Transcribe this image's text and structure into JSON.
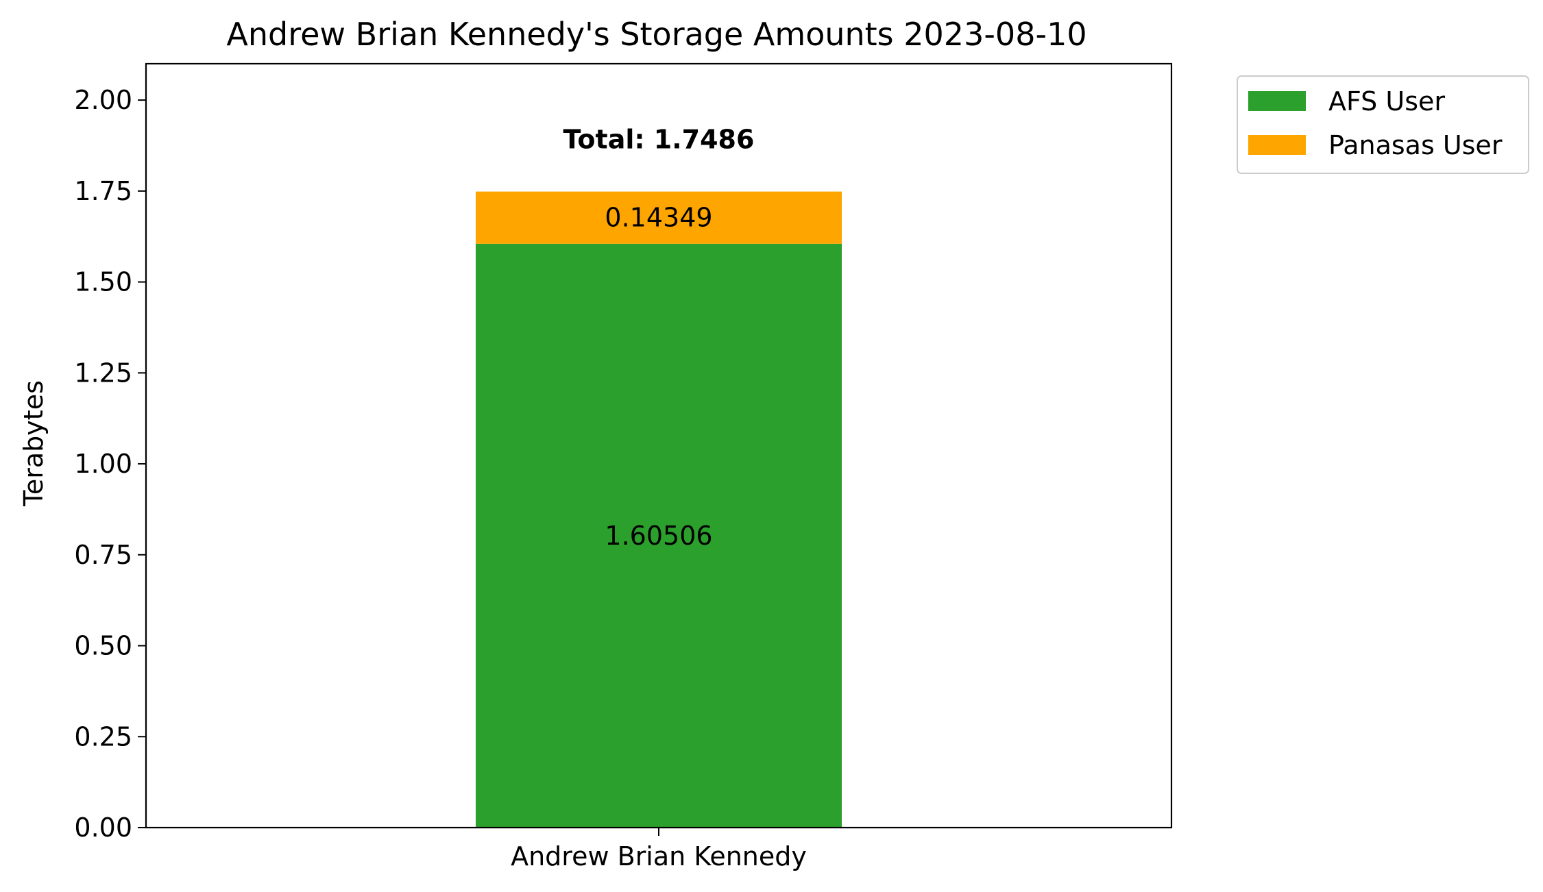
{
  "chart_data": {
    "type": "bar",
    "stacked": true,
    "title": "Andrew Brian Kennedy's Storage Amounts 2023-08-10",
    "xlabel": "",
    "ylabel": "Terabytes",
    "categories": [
      "Andrew Brian Kennedy"
    ],
    "series": [
      {
        "name": "AFS User",
        "values": [
          1.60506
        ],
        "labels": [
          "1.60506"
        ],
        "color": "#2ca02c"
      },
      {
        "name": "Panasas User",
        "values": [
          0.14349
        ],
        "labels": [
          "0.14349"
        ],
        "color": "#ffa500"
      }
    ],
    "totals": [
      "Total: 1.7486"
    ],
    "ylim": [
      0,
      2.1
    ],
    "yticks": [
      0,
      0.25,
      0.5,
      0.75,
      1.0,
      1.25,
      1.5,
      1.75,
      2.0
    ],
    "ytick_labels": [
      "0.00",
      "0.25",
      "0.50",
      "0.75",
      "1.00",
      "1.25",
      "1.50",
      "1.75",
      "2.00"
    ],
    "grid": false,
    "legend_position": "outside upper right"
  }
}
